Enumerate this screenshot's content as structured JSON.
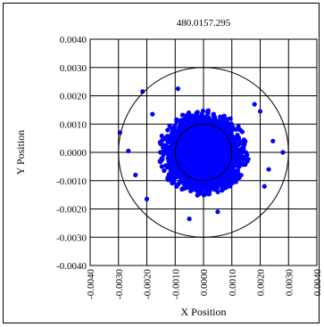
{
  "chart_data": {
    "type": "scatter",
    "title": "480.0157.295",
    "xlabel": "X Position",
    "ylabel": "Y Position",
    "xlim": [
      -0.004,
      0.004
    ],
    "ylim": [
      -0.004,
      0.004
    ],
    "x_ticks": [
      "-0.0040",
      "-0.0030",
      "-0.0020",
      "-0.0010",
      "0.0000",
      "0.0010",
      "0.0020",
      "0.0030",
      "0.0040"
    ],
    "y_ticks": [
      "0.0040",
      "0.0030",
      "0.0020",
      "0.0010",
      "0.0000",
      "-0.0010",
      "-0.0020",
      "-0.0030",
      "-0.0040"
    ],
    "grid": true,
    "legend": "none",
    "point_color": "#0000ff",
    "reference_circles": [
      {
        "center": [
          0.0,
          0.0
        ],
        "radius": 0.001
      },
      {
        "center": [
          0.0,
          0.0
        ],
        "radius": 0.003
      }
    ],
    "series": [
      {
        "cluster": {
          "center": [
            0.0,
            0.0
          ],
          "spread_x": 0.0011,
          "spread_y": 0.0011,
          "count": 4500
        },
        "outliers": [
          [
            -0.00295,
            0.0007
          ],
          [
            -0.00265,
            5e-05
          ],
          [
            -0.00215,
            0.00215
          ],
          [
            -0.0018,
            0.00135
          ],
          [
            -0.0009,
            0.00225
          ],
          [
            0.002,
            0.00145
          ],
          [
            0.0028,
            0.0
          ],
          [
            0.00245,
            0.0004
          ],
          [
            -0.0024,
            -0.0008
          ],
          [
            0.00215,
            -0.0012
          ],
          [
            -0.0005,
            -0.00235
          ],
          [
            0.0005,
            -0.0021
          ],
          [
            -0.002,
            -0.00165
          ],
          [
            0.0018,
            0.0017
          ],
          [
            0.0023,
            -0.0006
          ]
        ]
      }
    ]
  }
}
